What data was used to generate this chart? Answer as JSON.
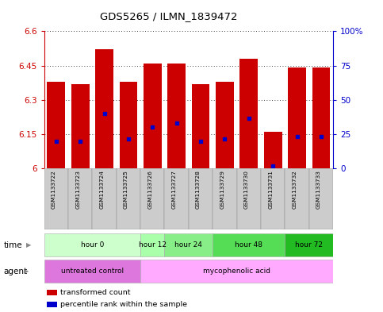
{
  "title": "GDS5265 / ILMN_1839472",
  "samples": [
    "GSM1133722",
    "GSM1133723",
    "GSM1133724",
    "GSM1133725",
    "GSM1133726",
    "GSM1133727",
    "GSM1133728",
    "GSM1133729",
    "GSM1133730",
    "GSM1133731",
    "GSM1133732",
    "GSM1133733"
  ],
  "bar_values": [
    6.38,
    6.37,
    6.52,
    6.38,
    6.46,
    6.46,
    6.37,
    6.38,
    6.48,
    6.16,
    6.44,
    6.44
  ],
  "percentile_values": [
    6.12,
    6.12,
    6.24,
    6.13,
    6.18,
    6.2,
    6.12,
    6.13,
    6.22,
    6.01,
    6.14,
    6.14
  ],
  "ymin": 6.0,
  "ymax": 6.6,
  "yticks": [
    6.0,
    6.15,
    6.3,
    6.45,
    6.6
  ],
  "ytick_labels": [
    "6",
    "6.15",
    "6.3",
    "6.45",
    "6.6"
  ],
  "y2ticks": [
    0,
    25,
    50,
    75,
    100
  ],
  "y2tick_labels": [
    "0",
    "25",
    "50",
    "75",
    "100%"
  ],
  "bar_color": "#cc0000",
  "percentile_color": "#0000cc",
  "time_groups": [
    {
      "label": "hour 0",
      "start": 0,
      "end": 3,
      "color": "#ccffcc"
    },
    {
      "label": "hour 12",
      "start": 4,
      "end": 4,
      "color": "#aaffaa"
    },
    {
      "label": "hour 24",
      "start": 5,
      "end": 6,
      "color": "#88ee88"
    },
    {
      "label": "hour 48",
      "start": 7,
      "end": 9,
      "color": "#55dd55"
    },
    {
      "label": "hour 72",
      "start": 10,
      "end": 11,
      "color": "#22bb22"
    }
  ],
  "agent_groups": [
    {
      "label": "untreated control",
      "start": 0,
      "end": 3,
      "color": "#dd77dd"
    },
    {
      "label": "mycophenolic acid",
      "start": 4,
      "end": 11,
      "color": "#ffaaff"
    }
  ],
  "legend_items": [
    {
      "label": "transformed count",
      "color": "#cc0000"
    },
    {
      "label": "percentile rank within the sample",
      "color": "#0000cc"
    }
  ],
  "fig_width": 4.83,
  "fig_height": 3.93,
  "dpi": 100
}
